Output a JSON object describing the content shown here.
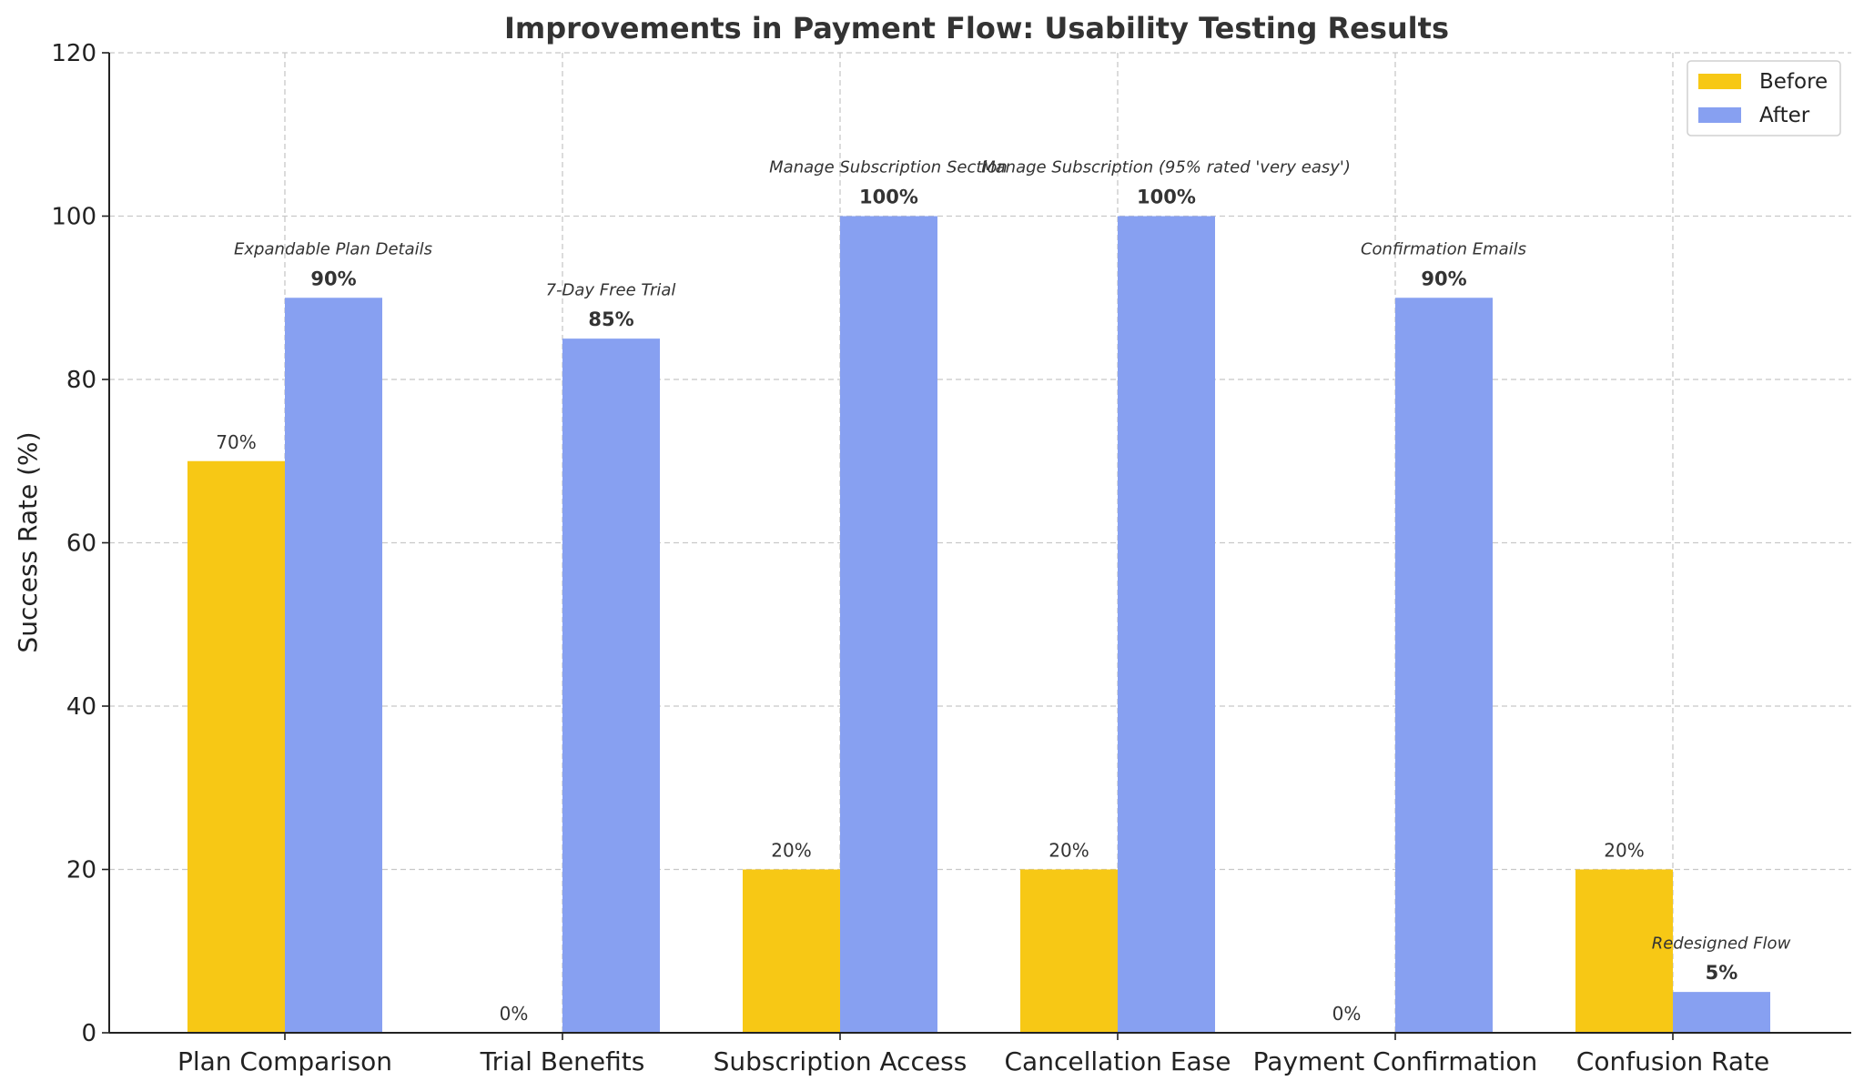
{
  "chart_data": {
    "type": "bar",
    "title": "Improvements in Payment Flow: Usability Testing Results",
    "xlabel": "",
    "ylabel": "Success Rate (%)",
    "ylim": [
      0,
      120
    ],
    "yticks": [
      0,
      20,
      40,
      60,
      80,
      100,
      120
    ],
    "grid": true,
    "legend_position": "top-right",
    "categories": [
      "Plan Comparison",
      "Trial Benefits",
      "Subscription Access",
      "Cancellation Ease",
      "Payment Confirmation",
      "Confusion Rate"
    ],
    "series": [
      {
        "name": "Before",
        "color": "#F7C815",
        "values": [
          70,
          0,
          20,
          20,
          0,
          20
        ],
        "labels": [
          "70%",
          "0%",
          "20%",
          "20%",
          "0%",
          "20%"
        ]
      },
      {
        "name": "After",
        "color": "#87A0F1",
        "values": [
          90,
          85,
          100,
          100,
          90,
          5
        ],
        "labels": [
          "90%",
          "85%",
          "100%",
          "100%",
          "90%",
          "5%"
        ]
      }
    ],
    "annotations": [
      {
        "category": "Plan Comparison",
        "text": "Expandable Plan Details",
        "y": 96
      },
      {
        "category": "Trial Benefits",
        "text": "7-Day Free Trial",
        "y": 91
      },
      {
        "category": "Subscription Access",
        "text": "Manage Subscription Section",
        "y": 106
      },
      {
        "category": "Cancellation Ease",
        "text": "Manage Subscription (95% rated 'very easy')",
        "y": 106
      },
      {
        "category": "Payment Confirmation",
        "text": "Confirmation Emails",
        "y": 96
      },
      {
        "category": "Confusion Rate",
        "text": "Redesigned Flow",
        "y": 11
      }
    ]
  }
}
